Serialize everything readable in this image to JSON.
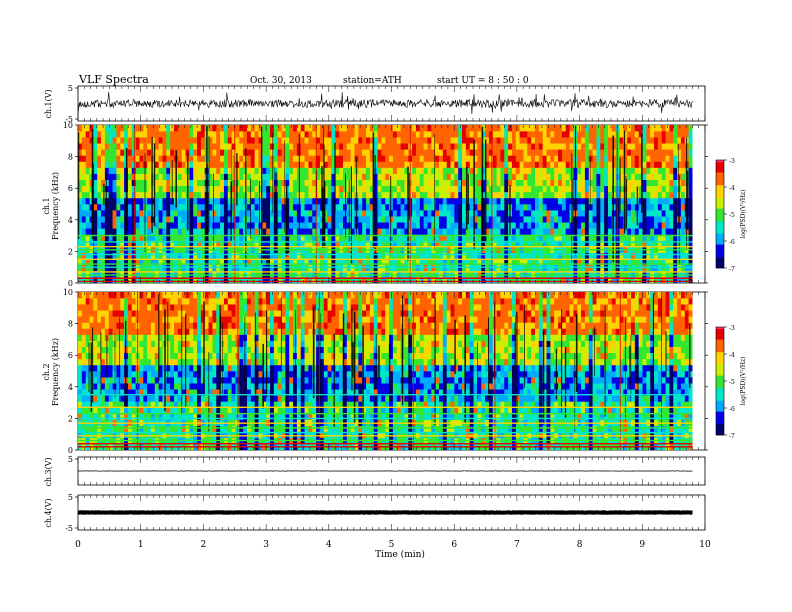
{
  "header": {
    "title": "VLF  Spectra",
    "date": "Oct. 30, 2013",
    "station": "station=ATH",
    "start": "start  UT  =   8 : 50 : 0"
  },
  "chart_data": [
    {
      "type": "line",
      "panel": "ch1-waveform",
      "ylabel": "ch.1(V)",
      "ylim": [
        -5,
        5
      ],
      "yticks": [
        "5",
        "-5"
      ],
      "xlim": [
        0,
        10
      ],
      "series": [
        {
          "values_description_level": 0.0
        }
      ]
    },
    {
      "type": "heatmap",
      "panel": "ch1-spectrogram",
      "ylabel_top": "ch.1",
      "ylabel": "Frequency  (kHz)",
      "ylim": [
        0,
        10
      ],
      "yticks": [
        "0",
        "2",
        "4",
        "6",
        "8",
        "10"
      ],
      "xlim": [
        0,
        10
      ],
      "colorbar": {
        "label": "log(PSD)(V²/Hz)",
        "ticks": [
          "-3",
          "-4",
          "-5",
          "-6",
          "-7"
        ],
        "range": [
          -7,
          -3
        ]
      },
      "bands_khz": [
        0.1,
        0.3,
        0.5,
        0.7,
        1.0,
        1.2,
        1.5,
        1.8,
        2.1,
        2.3,
        2.6,
        3.0
      ]
    },
    {
      "type": "heatmap",
      "panel": "ch2-spectrogram",
      "ylabel_top": "ch.2",
      "ylabel": "Frequency  (kHz)",
      "ylim": [
        0,
        10
      ],
      "yticks": [
        "0",
        "2",
        "4",
        "6",
        "8",
        "10"
      ],
      "xlim": [
        0,
        10
      ],
      "colorbar": {
        "label": "log(PSD)(V²/Hz)",
        "ticks": [
          "-3",
          "-4",
          "-5",
          "-6",
          "-7"
        ],
        "range": [
          -7,
          -3
        ]
      },
      "bands_khz": [
        0.2,
        0.4,
        0.6,
        0.9,
        1.1,
        1.4,
        1.7,
        2.0,
        2.3,
        2.7,
        3.5
      ]
    },
    {
      "type": "line",
      "panel": "ch3-waveform",
      "ylabel": "ch.3(V)",
      "ylim": [
        -5,
        5
      ],
      "yticks": [
        "5"
      ],
      "xlim": [
        0,
        10
      ],
      "level": 0
    },
    {
      "type": "line",
      "panel": "ch4-waveform",
      "ylabel": "ch.4(V)",
      "ylim": [
        -5,
        5
      ],
      "yticks": [
        "5",
        "-5"
      ],
      "xlim": [
        0,
        10
      ],
      "level": 0
    }
  ],
  "xaxis": {
    "label": "Time  (min)",
    "ticks": [
      "0",
      "1",
      "2",
      "3",
      "4",
      "5",
      "6",
      "7",
      "8",
      "9",
      "10"
    ],
    "data_end": 9.8
  },
  "colors": {
    "colormap": [
      "#00006a",
      "#0000e6",
      "#00aaff",
      "#00e6c8",
      "#32e632",
      "#c8f000",
      "#ffd200",
      "#ff6400",
      "#e60000",
      "#ff3c8c",
      "#ffffff"
    ]
  }
}
